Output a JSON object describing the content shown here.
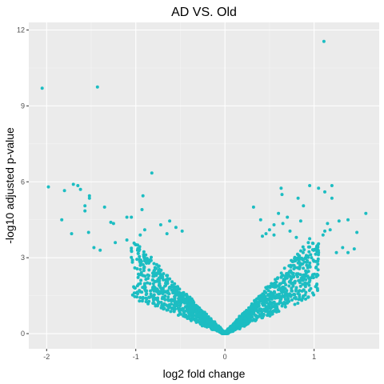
{
  "chart_data": {
    "type": "scatter",
    "title": "AD VS. Old",
    "xlabel": "log2 fold change",
    "ylabel": "-log10 adjusted p-value",
    "xlim": [
      -2.2,
      1.73
    ],
    "ylim": [
      -0.6,
      12.3
    ],
    "xticks": [
      -2,
      -1,
      0,
      1
    ],
    "xtick_labels": [
      "-2",
      "-1",
      "0",
      "1"
    ],
    "yticks": [
      0,
      3,
      6,
      9,
      12
    ],
    "ytick_labels": [
      "0",
      "3",
      "6",
      "9",
      "12"
    ],
    "grid": true,
    "legend": "none",
    "colors": {
      "point": "#1cbdc2",
      "panel": "#ebebeb",
      "grid_major": "#ffffff",
      "grid_minor": "#f4f4f4"
    },
    "series": [
      {
        "points": [
          [
            -2.05,
            9.7
          ],
          [
            -1.43,
            9.75
          ],
          [
            1.11,
            11.55
          ],
          [
            -0.82,
            6.35
          ],
          [
            -1.98,
            5.8
          ],
          [
            -1.8,
            5.65
          ],
          [
            -1.7,
            5.9
          ],
          [
            -1.65,
            5.85
          ],
          [
            -1.62,
            5.7
          ],
          [
            -1.52,
            5.45
          ],
          [
            -1.52,
            5.35
          ],
          [
            -1.57,
            5.05
          ],
          [
            -1.57,
            4.85
          ],
          [
            -1.83,
            4.5
          ],
          [
            -1.53,
            4.0
          ],
          [
            -1.72,
            3.95
          ],
          [
            -1.35,
            5.0
          ],
          [
            -1.28,
            4.4
          ],
          [
            -1.25,
            4.35
          ],
          [
            -1.1,
            4.6
          ],
          [
            -1.05,
            4.6
          ],
          [
            -0.92,
            5.45
          ],
          [
            -0.93,
            4.9
          ],
          [
            -1.23,
            3.6
          ],
          [
            -1.47,
            3.4
          ],
          [
            -1.4,
            3.3
          ],
          [
            -1.1,
            3.7
          ],
          [
            -0.95,
            3.9
          ],
          [
            -0.9,
            4.1
          ],
          [
            -0.72,
            4.3
          ],
          [
            -0.62,
            4.45
          ],
          [
            -0.55,
            4.2
          ],
          [
            -0.48,
            4.05
          ],
          [
            -0.65,
            3.95
          ],
          [
            0.63,
            5.75
          ],
          [
            0.64,
            5.5
          ],
          [
            0.95,
            5.85
          ],
          [
            1.05,
            5.75
          ],
          [
            1.12,
            5.6
          ],
          [
            0.82,
            5.35
          ],
          [
            1.2,
            5.35
          ],
          [
            1.2,
            5.85
          ],
          [
            0.88,
            5.05
          ],
          [
            0.32,
            5.0
          ],
          [
            0.6,
            4.75
          ],
          [
            0.4,
            4.5
          ],
          [
            0.7,
            4.6
          ],
          [
            0.85,
            4.45
          ],
          [
            1.28,
            4.45
          ],
          [
            1.38,
            4.5
          ],
          [
            1.58,
            4.75
          ],
          [
            1.48,
            4.0
          ],
          [
            1.15,
            4.35
          ],
          [
            1.12,
            4.05
          ],
          [
            1.18,
            4.1
          ],
          [
            1.1,
            3.9
          ],
          [
            0.5,
            4.1
          ],
          [
            0.55,
            4.3
          ],
          [
            0.95,
            3.75
          ],
          [
            1.32,
            3.4
          ],
          [
            1.38,
            3.2
          ],
          [
            1.45,
            3.35
          ],
          [
            1.25,
            3.2
          ],
          [
            1.05,
            3.2
          ],
          [
            1.05,
            3.55
          ],
          [
            0.8,
            3.8
          ],
          [
            0.73,
            4.05
          ],
          [
            0.65,
            4.35
          ],
          [
            0.42,
            3.85
          ],
          [
            0.46,
            3.95
          ],
          [
            0.55,
            3.9
          ]
        ]
      }
    ]
  }
}
